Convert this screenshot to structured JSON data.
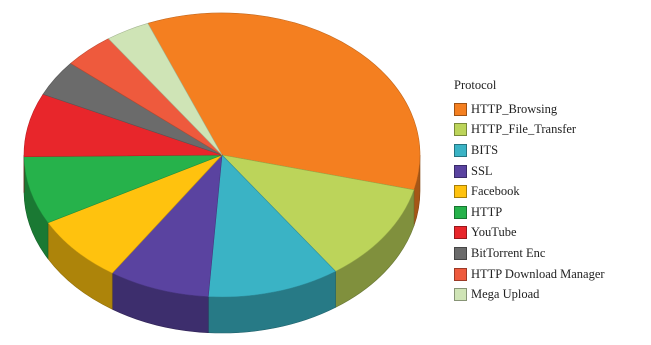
{
  "chart_data": {
    "type": "pie",
    "style": "3d",
    "legend_title": "Protocol",
    "legend_position": "right",
    "series": [
      {
        "name": "HTTP_Browsing",
        "value": 34.0,
        "color": "#f47f20"
      },
      {
        "name": "HTTP_File_Transfer",
        "value": 11.0,
        "color": "#bcd45a"
      },
      {
        "name": "BITS",
        "value": 10.5,
        "color": "#3ab3c5"
      },
      {
        "name": "SSL",
        "value": 8.0,
        "color": "#5a43a0"
      },
      {
        "name": "Facebook",
        "value": 7.5,
        "color": "#ffc20e"
      },
      {
        "name": "HTTP",
        "value": 7.5,
        "color": "#26b24b"
      },
      {
        "name": "YouTube",
        "value": 7.0,
        "color": "#e8262b"
      },
      {
        "name": "BitTorrent Enc",
        "value": 4.0,
        "color": "#6b6b6b"
      },
      {
        "name": "HTTP Download Manager",
        "value": 4.0,
        "color": "#ee5a3d"
      },
      {
        "name": "Mega Upload",
        "value": 3.5,
        "color": "#cfe4b6"
      }
    ]
  }
}
